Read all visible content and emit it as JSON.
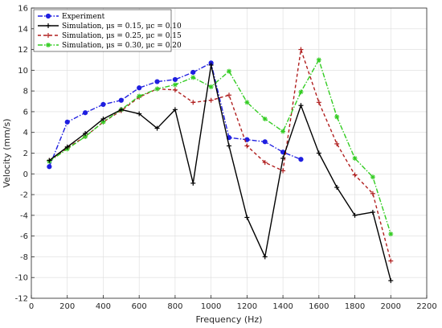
{
  "chart_data": {
    "type": "line",
    "xlabel": "Frequency (Hz)",
    "ylabel": "Velocity (mm/s)",
    "xlim": [
      0,
      2200
    ],
    "ylim": [
      -12,
      16
    ],
    "xticks": [
      0,
      200,
      400,
      600,
      800,
      1000,
      1200,
      1400,
      1600,
      1800,
      2000,
      2200
    ],
    "yticks": [
      -12,
      -10,
      -8,
      -6,
      -4,
      -2,
      0,
      2,
      4,
      6,
      8,
      10,
      12,
      14,
      16
    ],
    "grid": true,
    "legend_position": "top-left",
    "series": [
      {
        "name": "Experiment",
        "color": "#1f1fe0",
        "dash": "6,2,1.5,2",
        "marker": "circle",
        "x": [
          100,
          200,
          300,
          400,
          500,
          600,
          700,
          800,
          900,
          1000,
          1100,
          1200,
          1300,
          1400,
          1500
        ],
        "y": [
          0.7,
          5.0,
          5.9,
          6.7,
          7.1,
          8.3,
          8.9,
          9.1,
          9.8,
          10.7,
          3.5,
          3.3,
          3.1,
          2.1,
          1.4
        ]
      },
      {
        "name": "Simulation, μs = 0.15, μc = 0.10",
        "color": "#000000",
        "dash": "",
        "marker": "plus",
        "x": [
          100,
          200,
          300,
          400,
          500,
          600,
          700,
          800,
          900,
          1000,
          1100,
          1200,
          1300,
          1400,
          1500,
          1600,
          1700,
          1800,
          1900,
          2000
        ],
        "y": [
          1.3,
          2.6,
          3.9,
          5.3,
          6.2,
          5.8,
          4.4,
          6.2,
          -0.9,
          10.5,
          2.7,
          -4.2,
          -8.0,
          1.5,
          6.6,
          2.0,
          -1.3,
          -4.0,
          -3.7,
          -10.3
        ]
      },
      {
        "name": "Simulation, μs = 0.25, μc = 0.15",
        "color": "#b01f1f",
        "dash": "4,3",
        "marker": "plus",
        "x": [
          100,
          200,
          300,
          400,
          500,
          600,
          700,
          800,
          900,
          1000,
          1100,
          1200,
          1300,
          1400,
          1500,
          1600,
          1700,
          1800,
          1900,
          2000
        ],
        "y": [
          1.3,
          2.5,
          3.6,
          5.0,
          6.1,
          7.4,
          8.2,
          8.1,
          6.9,
          7.1,
          7.6,
          2.7,
          1.1,
          0.3,
          12.0,
          6.9,
          2.9,
          -0.1,
          -1.9,
          -8.4
        ]
      },
      {
        "name": "Simulation, μs = 0.30, μc = 0.20",
        "color": "#33cc22",
        "dash": "6,2,1.5,2",
        "marker": "star",
        "x": [
          100,
          200,
          300,
          400,
          500,
          600,
          700,
          800,
          900,
          1000,
          1100,
          1200,
          1300,
          1400,
          1500,
          1600,
          1700,
          1800,
          1900,
          2000
        ],
        "y": [
          1.2,
          2.4,
          3.6,
          5.0,
          6.2,
          7.5,
          8.2,
          8.6,
          9.3,
          8.4,
          9.9,
          6.9,
          5.3,
          4.1,
          7.9,
          11.0,
          5.5,
          1.5,
          -0.3,
          -5.8
        ]
      }
    ]
  }
}
